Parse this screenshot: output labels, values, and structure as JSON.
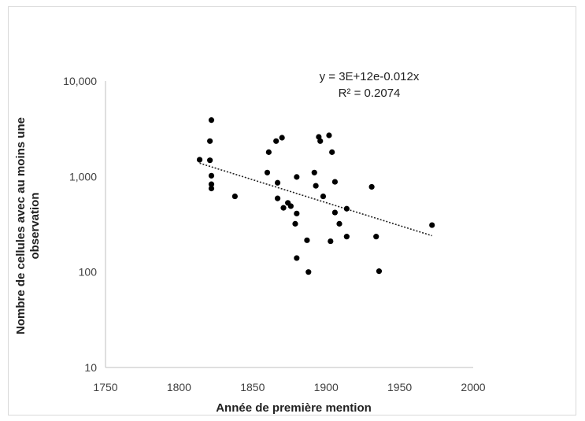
{
  "chart_data": {
    "type": "scatter",
    "title": "",
    "xlabel": "Année de première mention",
    "ylabel_lines": [
      "Nombre de cellules avec au moins une",
      "observation"
    ],
    "xlim": [
      1750,
      2000
    ],
    "ylim": [
      10,
      10000
    ],
    "y_scale": "log",
    "grid": false,
    "legend": "none",
    "x_ticks": [
      1750,
      1800,
      1850,
      1900,
      1950,
      2000
    ],
    "x_tick_labels": [
      "1750",
      "1800",
      "1850",
      "1900",
      "1950",
      "2000"
    ],
    "y_ticks": [
      10,
      100,
      1000,
      10000
    ],
    "y_tick_labels": [
      "10",
      "100",
      "1,000",
      "10,000"
    ],
    "points": [
      {
        "x": 1814,
        "y": 1500
      },
      {
        "x": 1821,
        "y": 2350
      },
      {
        "x": 1822,
        "y": 3900
      },
      {
        "x": 1821,
        "y": 1480
      },
      {
        "x": 1822,
        "y": 1020
      },
      {
        "x": 1822,
        "y": 830
      },
      {
        "x": 1822,
        "y": 750
      },
      {
        "x": 1838,
        "y": 620
      },
      {
        "x": 1860,
        "y": 1100
      },
      {
        "x": 1861,
        "y": 1800
      },
      {
        "x": 1866,
        "y": 2350
      },
      {
        "x": 1867,
        "y": 860
      },
      {
        "x": 1867,
        "y": 590
      },
      {
        "x": 1870,
        "y": 2550
      },
      {
        "x": 1871,
        "y": 470
      },
      {
        "x": 1874,
        "y": 530
      },
      {
        "x": 1876,
        "y": 490
      },
      {
        "x": 1879,
        "y": 320
      },
      {
        "x": 1880,
        "y": 990
      },
      {
        "x": 1880,
        "y": 410
      },
      {
        "x": 1880,
        "y": 140
      },
      {
        "x": 1887,
        "y": 215
      },
      {
        "x": 1888,
        "y": 100
      },
      {
        "x": 1892,
        "y": 1100
      },
      {
        "x": 1893,
        "y": 800
      },
      {
        "x": 1895,
        "y": 2600
      },
      {
        "x": 1896,
        "y": 2350
      },
      {
        "x": 1898,
        "y": 620
      },
      {
        "x": 1902,
        "y": 2700
      },
      {
        "x": 1903,
        "y": 210
      },
      {
        "x": 1904,
        "y": 1800
      },
      {
        "x": 1906,
        "y": 880
      },
      {
        "x": 1906,
        "y": 420
      },
      {
        "x": 1909,
        "y": 320
      },
      {
        "x": 1914,
        "y": 460
      },
      {
        "x": 1914,
        "y": 235
      },
      {
        "x": 1931,
        "y": 780
      },
      {
        "x": 1934,
        "y": 235
      },
      {
        "x": 1936,
        "y": 102
      },
      {
        "x": 1972,
        "y": 310
      }
    ],
    "trendline": {
      "type": "exponential",
      "equation": "y = 3E+12e-0.012x",
      "r_squared": "R² = 0.2074",
      "x_start": 1814,
      "x_end": 1972,
      "y_start": 1380,
      "y_end": 240,
      "color": "#222222"
    },
    "point_color": "#000000",
    "axis_color": "#bfbfbf"
  }
}
